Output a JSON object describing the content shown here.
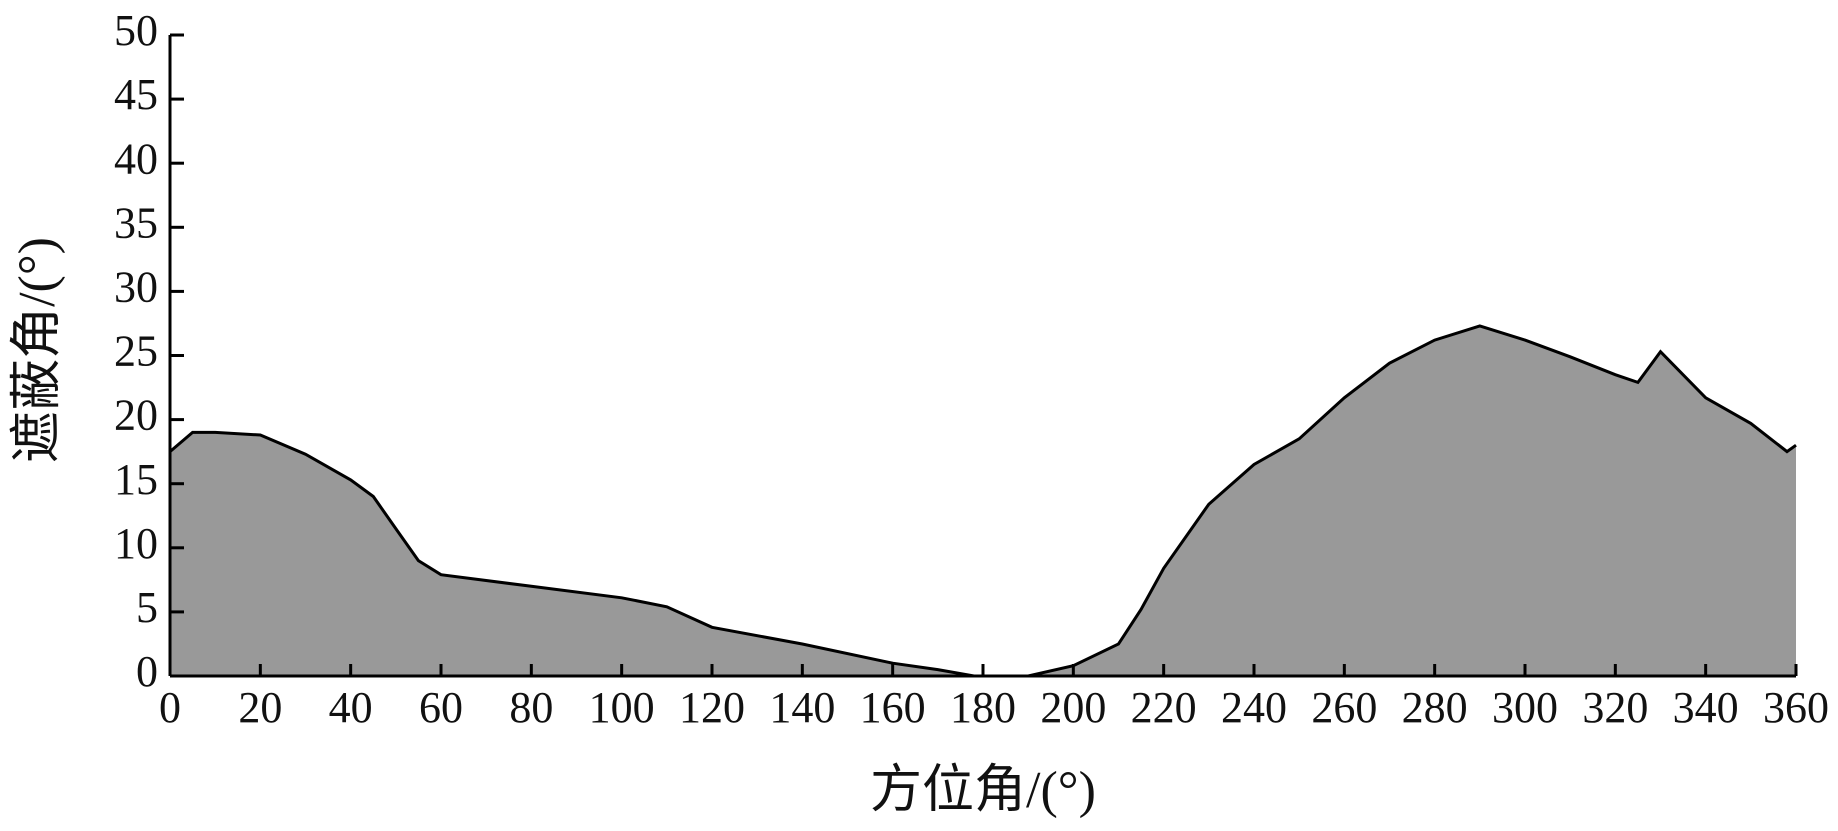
{
  "chart_data": {
    "type": "area",
    "xlabel": "方位角/(°)",
    "ylabel": "遮蔽角/(°)",
    "x": [
      0,
      5,
      10,
      20,
      30,
      40,
      45,
      50,
      55,
      60,
      80,
      100,
      110,
      120,
      140,
      160,
      170,
      178,
      190,
      200,
      210,
      215,
      220,
      230,
      240,
      250,
      260,
      270,
      280,
      290,
      300,
      310,
      320,
      325,
      330,
      340,
      350,
      358,
      360
    ],
    "values": [
      17.5,
      19.0,
      19.0,
      18.8,
      17.3,
      15.3,
      14.0,
      11.5,
      9.0,
      7.9,
      7.0,
      6.1,
      5.4,
      3.8,
      2.5,
      1.0,
      0.5,
      0,
      0,
      0.8,
      2.5,
      5.2,
      8.4,
      13.4,
      16.5,
      18.5,
      21.7,
      24.4,
      26.2,
      27.3,
      26.2,
      24.9,
      23.5,
      22.9,
      25.3,
      21.7,
      19.7,
      17.5,
      18.0
    ],
    "color": "#999999",
    "xlim": [
      0,
      360
    ],
    "xticks": [
      0,
      20,
      40,
      60,
      80,
      100,
      120,
      140,
      160,
      180,
      200,
      220,
      240,
      260,
      280,
      300,
      320,
      340,
      360
    ],
    "ylim": [
      0,
      50
    ],
    "yticks": [
      0,
      5,
      10,
      15,
      20,
      25,
      30,
      35,
      40,
      45,
      50
    ]
  }
}
